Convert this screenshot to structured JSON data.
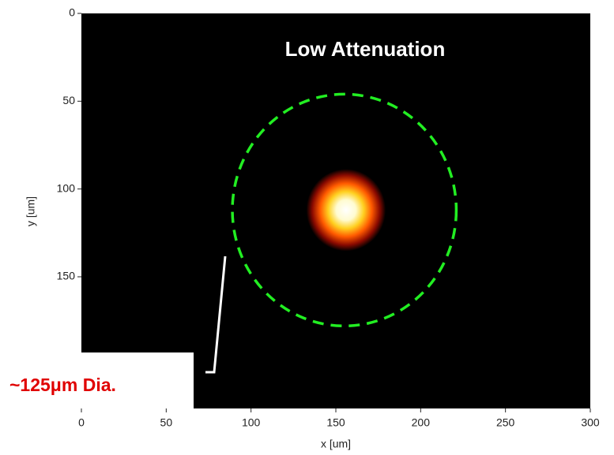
{
  "chart_data": {
    "type": "image",
    "title": "Low Attenuation",
    "annotation": "~125μm Dia.",
    "x_label": "x [um]",
    "y_label": "y [um]",
    "xlim": [
      0,
      300
    ],
    "ylim": [
      0,
      225
    ],
    "xticks": [
      0,
      50,
      100,
      150,
      200,
      250,
      300
    ],
    "yticks": [
      0,
      50,
      100,
      150
    ],
    "background": "#000000",
    "spot": {
      "x": 156,
      "y": 112,
      "size": 9
    },
    "circle": {
      "cx": 155,
      "cy": 112,
      "r": 66,
      "color": "#22ee22"
    }
  }
}
